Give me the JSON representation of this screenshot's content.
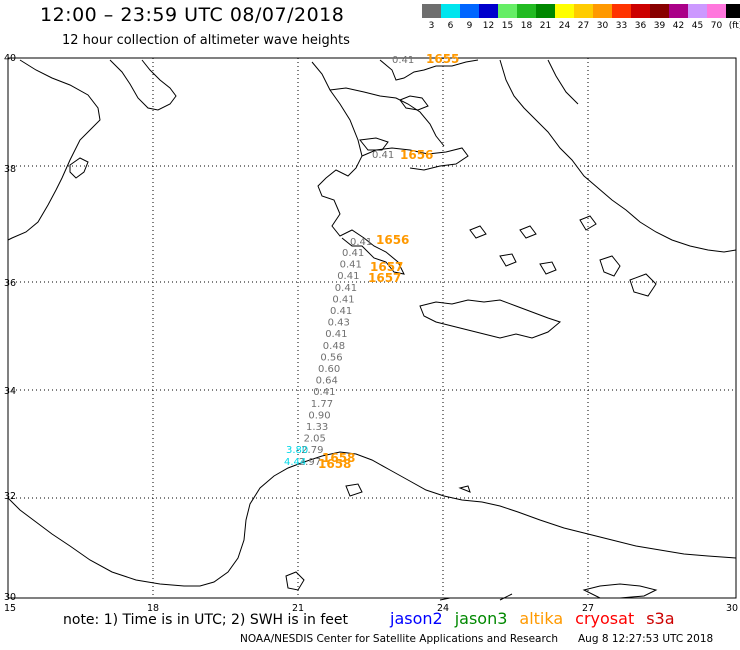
{
  "header": {
    "title": "12:00 – 23:59 UTC 08/07/2018",
    "subtitle": "12 hour collection of altimeter wave heights"
  },
  "colorbar": {
    "labels": [
      "3",
      "6",
      "9",
      "12",
      "15",
      "18",
      "21",
      "24",
      "27",
      "30",
      "33",
      "36",
      "39",
      "42",
      "45",
      "70",
      "(ft)"
    ],
    "colors": [
      "#6e6e6e",
      "#00e5ee",
      "#0066ff",
      "#0000cc",
      "#66ee66",
      "#22bb22",
      "#008800",
      "#ffff00",
      "#ffcc00",
      "#ff9900",
      "#ff3300",
      "#cc0000",
      "#880000",
      "#aa0088",
      "#cc99ff",
      "#ff77dd",
      "#000000"
    ]
  },
  "axes": {
    "lon_labels": [
      "15",
      "18",
      "21",
      "24",
      "27",
      "30"
    ],
    "lat_labels": [
      "40",
      "38",
      "36",
      "34",
      "32",
      "30"
    ],
    "lon_range": [
      15,
      30
    ],
    "lat_range": [
      30,
      40
    ]
  },
  "track": {
    "swh_gray": [
      "0.41",
      "0.41",
      "0.41",
      "0.41",
      "0.41",
      "0.41",
      "0.43",
      "0.41",
      "0.48",
      "0.56",
      "0.60",
      "0.64",
      "0.41",
      "1.77",
      "0.90",
      "1.33",
      "2.05",
      "2.79",
      "2.97"
    ],
    "swh_cyan": [
      "3.80",
      "4.44"
    ],
    "labels_tail": [
      "0.41",
      "0.41",
      "0.41"
    ],
    "times": [
      "1655",
      "1656",
      "1656",
      "1657",
      "1657",
      "1658",
      "1658"
    ]
  },
  "footer": {
    "note": "note:  1) Time is in UTC;  2) SWH is in feet",
    "credit": "NOAA/NESDIS Center for Satellite Applications and Research",
    "timestamp": "Aug  8 12:27:53 UTC 2018",
    "missions": [
      {
        "name": "jason2",
        "color": "#0000ff"
      },
      {
        "name": "jason3",
        "color": "#008800"
      },
      {
        "name": "altika",
        "color": "#ff9900"
      },
      {
        "name": "cryosat",
        "color": "#ff0000"
      },
      {
        "name": "s3a",
        "color": "#cc0000"
      }
    ]
  }
}
